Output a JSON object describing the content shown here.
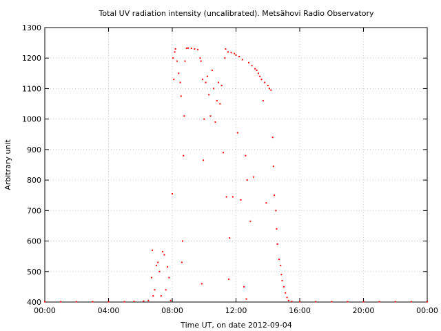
{
  "chart_data": {
    "type": "scatter",
    "title": "Total UV radiation intensity (uncalibrated). Metsähovi Radio Observatory",
    "xlabel": "Time UT, on date 2012-09-04",
    "ylabel": "Arbitrary unit",
    "x_unit": "hours UT",
    "xlim": [
      0,
      24
    ],
    "ylim": [
      400,
      1300
    ],
    "x_ticks": [
      0,
      4,
      8,
      12,
      16,
      20,
      24
    ],
    "x_tick_labels": [
      "00:00",
      "04:00",
      "08:00",
      "12:00",
      "16:00",
      "20:00",
      "00:00"
    ],
    "y_ticks": [
      400,
      500,
      600,
      700,
      800,
      900,
      1000,
      1100,
      1200,
      1300
    ],
    "y_tick_labels": [
      "400",
      "500",
      "600",
      "700",
      "800",
      "900",
      "1000",
      "1100",
      "1200",
      "1300"
    ],
    "grid": true,
    "marker_color": "#ff0000",
    "series": [
      {
        "points": [
          [
            0.0,
            401
          ],
          [
            1.0,
            401
          ],
          [
            2.0,
            401
          ],
          [
            3.0,
            401
          ],
          [
            4.0,
            401
          ],
          [
            5.0,
            401
          ],
          [
            5.6,
            402
          ],
          [
            6.2,
            403
          ],
          [
            6.5,
            405
          ],
          [
            6.7,
            480
          ],
          [
            6.75,
            570
          ],
          [
            6.8,
            420
          ],
          [
            6.9,
            440
          ],
          [
            7.0,
            520
          ],
          [
            7.1,
            530
          ],
          [
            7.2,
            500
          ],
          [
            7.3,
            420
          ],
          [
            7.4,
            565
          ],
          [
            7.5,
            555
          ],
          [
            7.6,
            440
          ],
          [
            7.7,
            515
          ],
          [
            7.8,
            480
          ],
          [
            7.9,
            405
          ],
          [
            8.0,
            755
          ],
          [
            8.05,
            1200
          ],
          [
            8.1,
            1130
          ],
          [
            8.15,
            1220
          ],
          [
            8.2,
            1230
          ],
          [
            8.3,
            1190
          ],
          [
            8.4,
            1150
          ],
          [
            8.5,
            1120
          ],
          [
            8.55,
            1075
          ],
          [
            8.6,
            530
          ],
          [
            8.65,
            600
          ],
          [
            8.7,
            880
          ],
          [
            8.75,
            1010
          ],
          [
            8.8,
            1190
          ],
          [
            8.9,
            1232
          ],
          [
            9.0,
            1233
          ],
          [
            9.2,
            1232
          ],
          [
            9.4,
            1230
          ],
          [
            9.6,
            1228
          ],
          [
            9.75,
            1200
          ],
          [
            9.8,
            1190
          ],
          [
            9.85,
            460
          ],
          [
            9.9,
            1130
          ],
          [
            9.95,
            865
          ],
          [
            10.0,
            1000
          ],
          [
            10.1,
            1120
          ],
          [
            10.2,
            1140
          ],
          [
            10.3,
            1080
          ],
          [
            10.4,
            1010
          ],
          [
            10.5,
            1160
          ],
          [
            10.6,
            1100
          ],
          [
            10.7,
            990
          ],
          [
            10.8,
            1060
          ],
          [
            10.9,
            1120
          ],
          [
            11.0,
            1050
          ],
          [
            11.1,
            1110
          ],
          [
            11.2,
            890
          ],
          [
            11.3,
            1200
          ],
          [
            11.35,
            1230
          ],
          [
            11.4,
            745
          ],
          [
            11.5,
            1220
          ],
          [
            11.55,
            475
          ],
          [
            11.6,
            610
          ],
          [
            11.7,
            1218
          ],
          [
            11.8,
            745
          ],
          [
            11.9,
            1215
          ],
          [
            12.0,
            1210
          ],
          [
            12.1,
            955
          ],
          [
            12.2,
            1205
          ],
          [
            12.3,
            735
          ],
          [
            12.4,
            1195
          ],
          [
            12.5,
            450
          ],
          [
            12.6,
            880
          ],
          [
            12.65,
            410
          ],
          [
            12.7,
            800
          ],
          [
            12.8,
            1185
          ],
          [
            12.9,
            665
          ],
          [
            13.0,
            1175
          ],
          [
            13.1,
            810
          ],
          [
            13.2,
            1165
          ],
          [
            13.3,
            1160
          ],
          [
            13.4,
            1150
          ],
          [
            13.5,
            1140
          ],
          [
            13.6,
            1130
          ],
          [
            13.7,
            1060
          ],
          [
            13.8,
            1120
          ],
          [
            13.9,
            725
          ],
          [
            14.0,
            1110
          ],
          [
            14.1,
            1100
          ],
          [
            14.2,
            1095
          ],
          [
            14.3,
            940
          ],
          [
            14.35,
            845
          ],
          [
            14.4,
            750
          ],
          [
            14.5,
            700
          ],
          [
            14.55,
            640
          ],
          [
            14.6,
            590
          ],
          [
            14.7,
            540
          ],
          [
            14.8,
            520
          ],
          [
            14.85,
            490
          ],
          [
            14.9,
            470
          ],
          [
            15.0,
            450
          ],
          [
            15.1,
            430
          ],
          [
            15.2,
            415
          ],
          [
            15.3,
            405
          ],
          [
            15.5,
            402
          ],
          [
            16.0,
            401
          ],
          [
            17.0,
            401
          ],
          [
            18.0,
            401
          ],
          [
            19.0,
            401
          ],
          [
            20.0,
            401
          ],
          [
            21.0,
            401
          ],
          [
            22.0,
            401
          ],
          [
            23.0,
            401
          ],
          [
            24.0,
            401
          ]
        ]
      }
    ]
  }
}
